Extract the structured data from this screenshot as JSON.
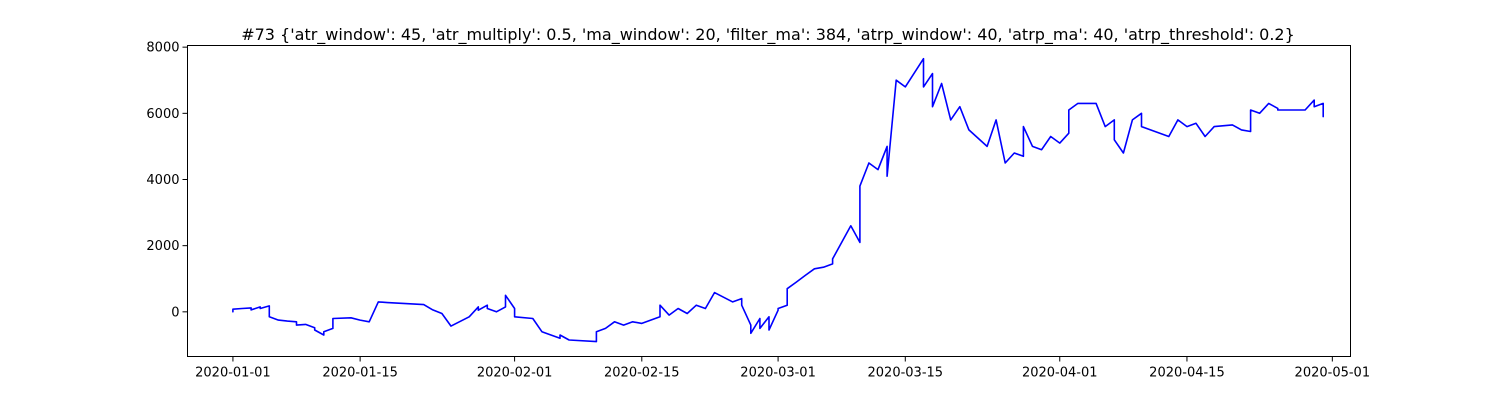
{
  "chart_data": {
    "type": "line",
    "title": "#73 {'atr_window': 45, 'atr_multiply': 0.5, 'ma_window': 20, 'filter_ma': 384, 'atrp_window': 40, 'atrp_ma': 40, 'atrp_threshold': 0.2}",
    "xlabel": "",
    "ylabel": "",
    "x_type": "date",
    "xlim": [
      "2019-12-27",
      "2020-05-03"
    ],
    "ylim": [
      -1350,
      8050
    ],
    "grid": false,
    "line_color": "#0000ff",
    "xticks": [
      "2020-01-01",
      "2020-01-15",
      "2020-02-01",
      "2020-02-15",
      "2020-03-01",
      "2020-03-15",
      "2020-04-01",
      "2020-04-15",
      "2020-05-01"
    ],
    "yticks": [
      0,
      2000,
      4000,
      6000,
      8000
    ],
    "series": [
      {
        "name": "",
        "points": [
          [
            "2020-01-01",
            0
          ],
          [
            "2020-01-01",
            80
          ],
          [
            "2020-01-02",
            100
          ],
          [
            "2020-01-03",
            120
          ],
          [
            "2020-01-03",
            60
          ],
          [
            "2020-01-04",
            150
          ],
          [
            "2020-01-04",
            100
          ],
          [
            "2020-01-05",
            180
          ],
          [
            "2020-01-05",
            -150
          ],
          [
            "2020-01-06",
            -250
          ],
          [
            "2020-01-07",
            -280
          ],
          [
            "2020-01-08",
            -300
          ],
          [
            "2020-01-08",
            -400
          ],
          [
            "2020-01-09",
            -380
          ],
          [
            "2020-01-10",
            -480
          ],
          [
            "2020-01-10",
            -550
          ],
          [
            "2020-01-11",
            -700
          ],
          [
            "2020-01-11",
            -600
          ],
          [
            "2020-01-12",
            -500
          ],
          [
            "2020-01-12",
            -200
          ],
          [
            "2020-01-14",
            -180
          ],
          [
            "2020-01-15",
            -250
          ],
          [
            "2020-01-16",
            -300
          ],
          [
            "2020-01-17",
            300
          ],
          [
            "2020-01-18",
            280
          ],
          [
            "2020-01-20",
            250
          ],
          [
            "2020-01-22",
            220
          ],
          [
            "2020-01-23",
            60
          ],
          [
            "2020-01-24",
            -50
          ],
          [
            "2020-01-25",
            -430
          ],
          [
            "2020-01-27",
            -150
          ],
          [
            "2020-01-28",
            150
          ],
          [
            "2020-01-28",
            50
          ],
          [
            "2020-01-29",
            200
          ],
          [
            "2020-01-29",
            100
          ],
          [
            "2020-01-30",
            0
          ],
          [
            "2020-01-31",
            150
          ],
          [
            "2020-01-31",
            500
          ],
          [
            "2020-02-01",
            100
          ],
          [
            "2020-02-01",
            -150
          ],
          [
            "2020-02-03",
            -200
          ],
          [
            "2020-02-04",
            -600
          ],
          [
            "2020-02-05",
            -700
          ],
          [
            "2020-02-06",
            -800
          ],
          [
            "2020-02-06",
            -700
          ],
          [
            "2020-02-07",
            -850
          ],
          [
            "2020-02-10",
            -900
          ],
          [
            "2020-02-10",
            -600
          ],
          [
            "2020-02-11",
            -500
          ],
          [
            "2020-02-12",
            -300
          ],
          [
            "2020-02-13",
            -400
          ],
          [
            "2020-02-14",
            -300
          ],
          [
            "2020-02-15",
            -350
          ],
          [
            "2020-02-17",
            -150
          ],
          [
            "2020-02-17",
            200
          ],
          [
            "2020-02-18",
            -100
          ],
          [
            "2020-02-19",
            100
          ],
          [
            "2020-02-20",
            -50
          ],
          [
            "2020-02-21",
            200
          ],
          [
            "2020-02-22",
            100
          ],
          [
            "2020-02-23",
            580
          ],
          [
            "2020-02-25",
            300
          ],
          [
            "2020-02-26",
            400
          ],
          [
            "2020-02-26",
            200
          ],
          [
            "2020-02-27",
            -400
          ],
          [
            "2020-02-27",
            -650
          ],
          [
            "2020-02-28",
            -200
          ],
          [
            "2020-02-28",
            -500
          ],
          [
            "2020-02-29",
            -150
          ],
          [
            "2020-02-29",
            -550
          ],
          [
            "2020-03-01",
            50
          ],
          [
            "2020-03-01",
            100
          ],
          [
            "2020-03-02",
            200
          ],
          [
            "2020-03-02",
            700
          ],
          [
            "2020-03-03",
            900
          ],
          [
            "2020-03-04",
            1100
          ],
          [
            "2020-03-05",
            1300
          ],
          [
            "2020-03-06",
            1350
          ],
          [
            "2020-03-07",
            1450
          ],
          [
            "2020-03-07",
            1600
          ],
          [
            "2020-03-09",
            2600
          ],
          [
            "2020-03-10",
            2100
          ],
          [
            "2020-03-10",
            3800
          ],
          [
            "2020-03-11",
            4500
          ],
          [
            "2020-03-12",
            4300
          ],
          [
            "2020-03-13",
            5000
          ],
          [
            "2020-03-13",
            4100
          ],
          [
            "2020-03-14",
            7000
          ],
          [
            "2020-03-15",
            6800
          ],
          [
            "2020-03-17",
            7650
          ],
          [
            "2020-03-17",
            6800
          ],
          [
            "2020-03-18",
            7200
          ],
          [
            "2020-03-18",
            6200
          ],
          [
            "2020-03-19",
            6900
          ],
          [
            "2020-03-20",
            5800
          ],
          [
            "2020-03-21",
            6200
          ],
          [
            "2020-03-22",
            5500
          ],
          [
            "2020-03-24",
            5000
          ],
          [
            "2020-03-25",
            5800
          ],
          [
            "2020-03-26",
            4500
          ],
          [
            "2020-03-27",
            4800
          ],
          [
            "2020-03-28",
            4700
          ],
          [
            "2020-03-28",
            5600
          ],
          [
            "2020-03-29",
            5000
          ],
          [
            "2020-03-30",
            4900
          ],
          [
            "2020-03-31",
            5300
          ],
          [
            "2020-04-01",
            5100
          ],
          [
            "2020-04-02",
            5400
          ],
          [
            "2020-04-02",
            6100
          ],
          [
            "2020-04-03",
            6300
          ],
          [
            "2020-04-05",
            6300
          ],
          [
            "2020-04-06",
            5600
          ],
          [
            "2020-04-07",
            5800
          ],
          [
            "2020-04-07",
            5200
          ],
          [
            "2020-04-08",
            4800
          ],
          [
            "2020-04-09",
            5800
          ],
          [
            "2020-04-10",
            6000
          ],
          [
            "2020-04-10",
            5600
          ],
          [
            "2020-04-13",
            5300
          ],
          [
            "2020-04-14",
            5800
          ],
          [
            "2020-04-15",
            5600
          ],
          [
            "2020-04-16",
            5700
          ],
          [
            "2020-04-17",
            5300
          ],
          [
            "2020-04-18",
            5600
          ],
          [
            "2020-04-20",
            5650
          ],
          [
            "2020-04-21",
            5500
          ],
          [
            "2020-04-22",
            5450
          ],
          [
            "2020-04-22",
            6100
          ],
          [
            "2020-04-23",
            6000
          ],
          [
            "2020-04-24",
            6300
          ],
          [
            "2020-04-25",
            6150
          ],
          [
            "2020-04-25",
            6100
          ],
          [
            "2020-04-28",
            6100
          ],
          [
            "2020-04-29",
            6400
          ],
          [
            "2020-04-29",
            6200
          ],
          [
            "2020-04-30",
            6300
          ],
          [
            "2020-04-30",
            5900
          ]
        ]
      }
    ]
  }
}
